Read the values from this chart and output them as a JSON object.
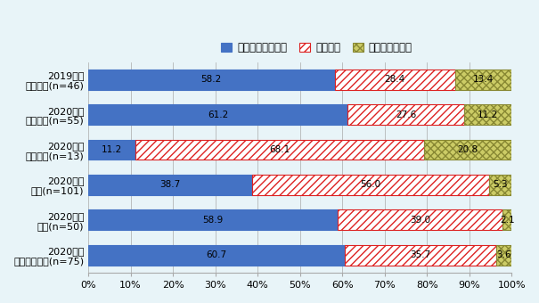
{
  "categories": [
    "2019年度\nメキシコ(n=46)",
    "2020年度\nメキシコ(n=55)",
    "2020年度\nブラジル(n=13)",
    "2020年度\n中国(n=101)",
    "2020年度\nタイ(n=50)",
    "2020年度\nインドネシア(n=75)"
  ],
  "series": [
    {
      "name": "現地進出日系企業",
      "values": [
        58.2,
        61.2,
        11.2,
        38.7,
        58.9,
        60.7
      ],
      "facecolor": "#4472C4",
      "hatch": "",
      "edgecolor": "#4472C4"
    },
    {
      "name": "地場企業",
      "values": [
        28.4,
        27.6,
        68.1,
        56.0,
        39.0,
        35.7
      ],
      "facecolor": "#FFFFFF",
      "hatch": "////",
      "edgecolor": "#DD2222"
    },
    {
      "name": "その他外資企業",
      "values": [
        13.4,
        11.2,
        20.8,
        5.3,
        2.1,
        3.6
      ],
      "facecolor": "#CCCC66",
      "hatch": "xxxx",
      "edgecolor": "#888833"
    }
  ],
  "background_color": "#E8F4F8",
  "xlim": [
    0,
    100
  ],
  "xtick_labels": [
    "0%",
    "10%",
    "20%",
    "30%",
    "40%",
    "50%",
    "60%",
    "70%",
    "80%",
    "90%",
    "100%"
  ],
  "xtick_values": [
    0,
    10,
    20,
    30,
    40,
    50,
    60,
    70,
    80,
    90,
    100
  ],
  "bar_height": 0.58,
  "text_fontsize": 7.5,
  "label_fontsize": 8.0,
  "legend_fontsize": 8.5,
  "figsize": [
    6.05,
    3.4
  ],
  "dpi": 100
}
